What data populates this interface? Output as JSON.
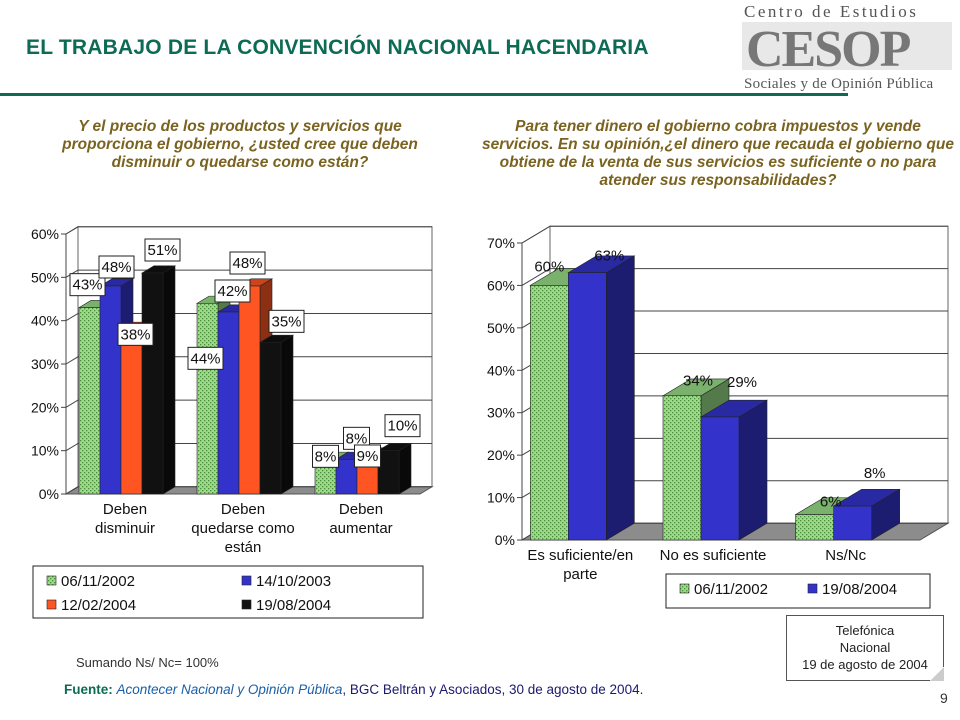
{
  "header": {
    "title": "EL TRABAJO DE LA CONVENCIÓN NACIONAL HACENDARIA",
    "logo": {
      "line1": "Centro de Estudios",
      "mark": "CESOP",
      "line2": "Sociales y de Opinión Pública"
    }
  },
  "questions": {
    "left": "Y el precio de los productos y servicios que proporciona el gobierno, ¿usted cree que deben disminuir o quedarse como están?",
    "right": "Para tener dinero el gobierno cobra impuestos y vende servicios. En su opinión,¿el dinero que recauda el gobierno que obtiene de la venta de sus servicios es suficiente o no para atender sus responsabilidades?"
  },
  "chart_data": [
    {
      "type": "bar",
      "style": "3d-clustered",
      "categories": [
        "Deben disminuir",
        "Deben quedarse como están",
        "Deben aumentar"
      ],
      "series": [
        {
          "name": "06/11/2002",
          "values": [
            43,
            44,
            8
          ],
          "color": "#99dd88"
        },
        {
          "name": "14/10/2003",
          "values": [
            48,
            42,
            8
          ],
          "color": "#3333cc"
        },
        {
          "name": "12/02/2004",
          "values": [
            38,
            48,
            9
          ],
          "color": "#ff5522"
        },
        {
          "name": "19/08/2004",
          "values": [
            51,
            35,
            10
          ],
          "color": "#111111"
        }
      ],
      "ylim": [
        0,
        60
      ],
      "yticks": [
        "0%",
        "10%",
        "20%",
        "30%",
        "40%",
        "50%",
        "60%"
      ],
      "data_labels": [
        [
          "43%",
          "48%",
          "38%",
          "51%"
        ],
        [
          "44%",
          "42%",
          "48%",
          "35%"
        ],
        [
          "8%",
          "8%",
          "9%",
          "10%"
        ]
      ],
      "grid": true,
      "legend": "bottom"
    },
    {
      "type": "bar",
      "style": "3d-clustered",
      "categories": [
        "Es suficiente/en parte",
        "No es suficiente",
        "Ns/Nc"
      ],
      "series": [
        {
          "name": "06/11/2002",
          "values": [
            60,
            34,
            6
          ],
          "color": "#99dd88"
        },
        {
          "name": "19/08/2004",
          "values": [
            63,
            29,
            8
          ],
          "color": "#3333cc"
        }
      ],
      "ylim": [
        0,
        70
      ],
      "yticks": [
        "0%",
        "10%",
        "20%",
        "30%",
        "40%",
        "50%",
        "60%",
        "70%"
      ],
      "data_labels": [
        [
          "60%",
          "63%"
        ],
        [
          "34%",
          "29%"
        ],
        [
          "6%",
          "8%"
        ]
      ],
      "grid": true,
      "legend": "bottom"
    }
  ],
  "footer": {
    "note": "Sumando Ns/ Nc= 100%",
    "source_label": "Fuente:",
    "source_italic": "Acontecer Nacional y Opinión Pública",
    "source_rest": ", BGC Beltrán y Asociados, 30 de agosto de 2004.",
    "callout": [
      "Telefónica",
      "Nacional",
      "19 de agosto de 2004"
    ],
    "page_number": "9"
  }
}
